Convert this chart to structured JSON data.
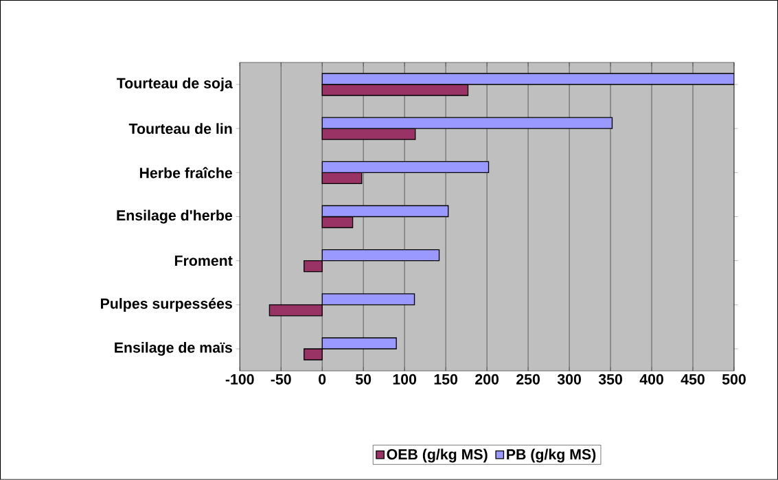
{
  "chart_data": {
    "type": "bar",
    "orientation": "horizontal",
    "categories": [
      "Tourteau de soja",
      "Tourteau de lin",
      "Herbe fraîche",
      "Ensilage d'herbe",
      "Froment",
      "Pulpes surpessées",
      "Ensilage de maïs"
    ],
    "series": [
      {
        "name": "OEB (g/kg MS)",
        "color": "#993366",
        "values": [
          177,
          113,
          48,
          37,
          -22,
          -64,
          -22
        ]
      },
      {
        "name": "PB (g/kg MS)",
        "color": "#9999ff",
        "values": [
          500,
          352,
          202,
          153,
          142,
          112,
          90
        ]
      }
    ],
    "xlim": [
      -100,
      500
    ],
    "xticks": [
      -100,
      -50,
      0,
      50,
      100,
      150,
      200,
      250,
      300,
      350,
      400,
      450,
      500
    ],
    "grid": "x",
    "legend": "bottom"
  }
}
